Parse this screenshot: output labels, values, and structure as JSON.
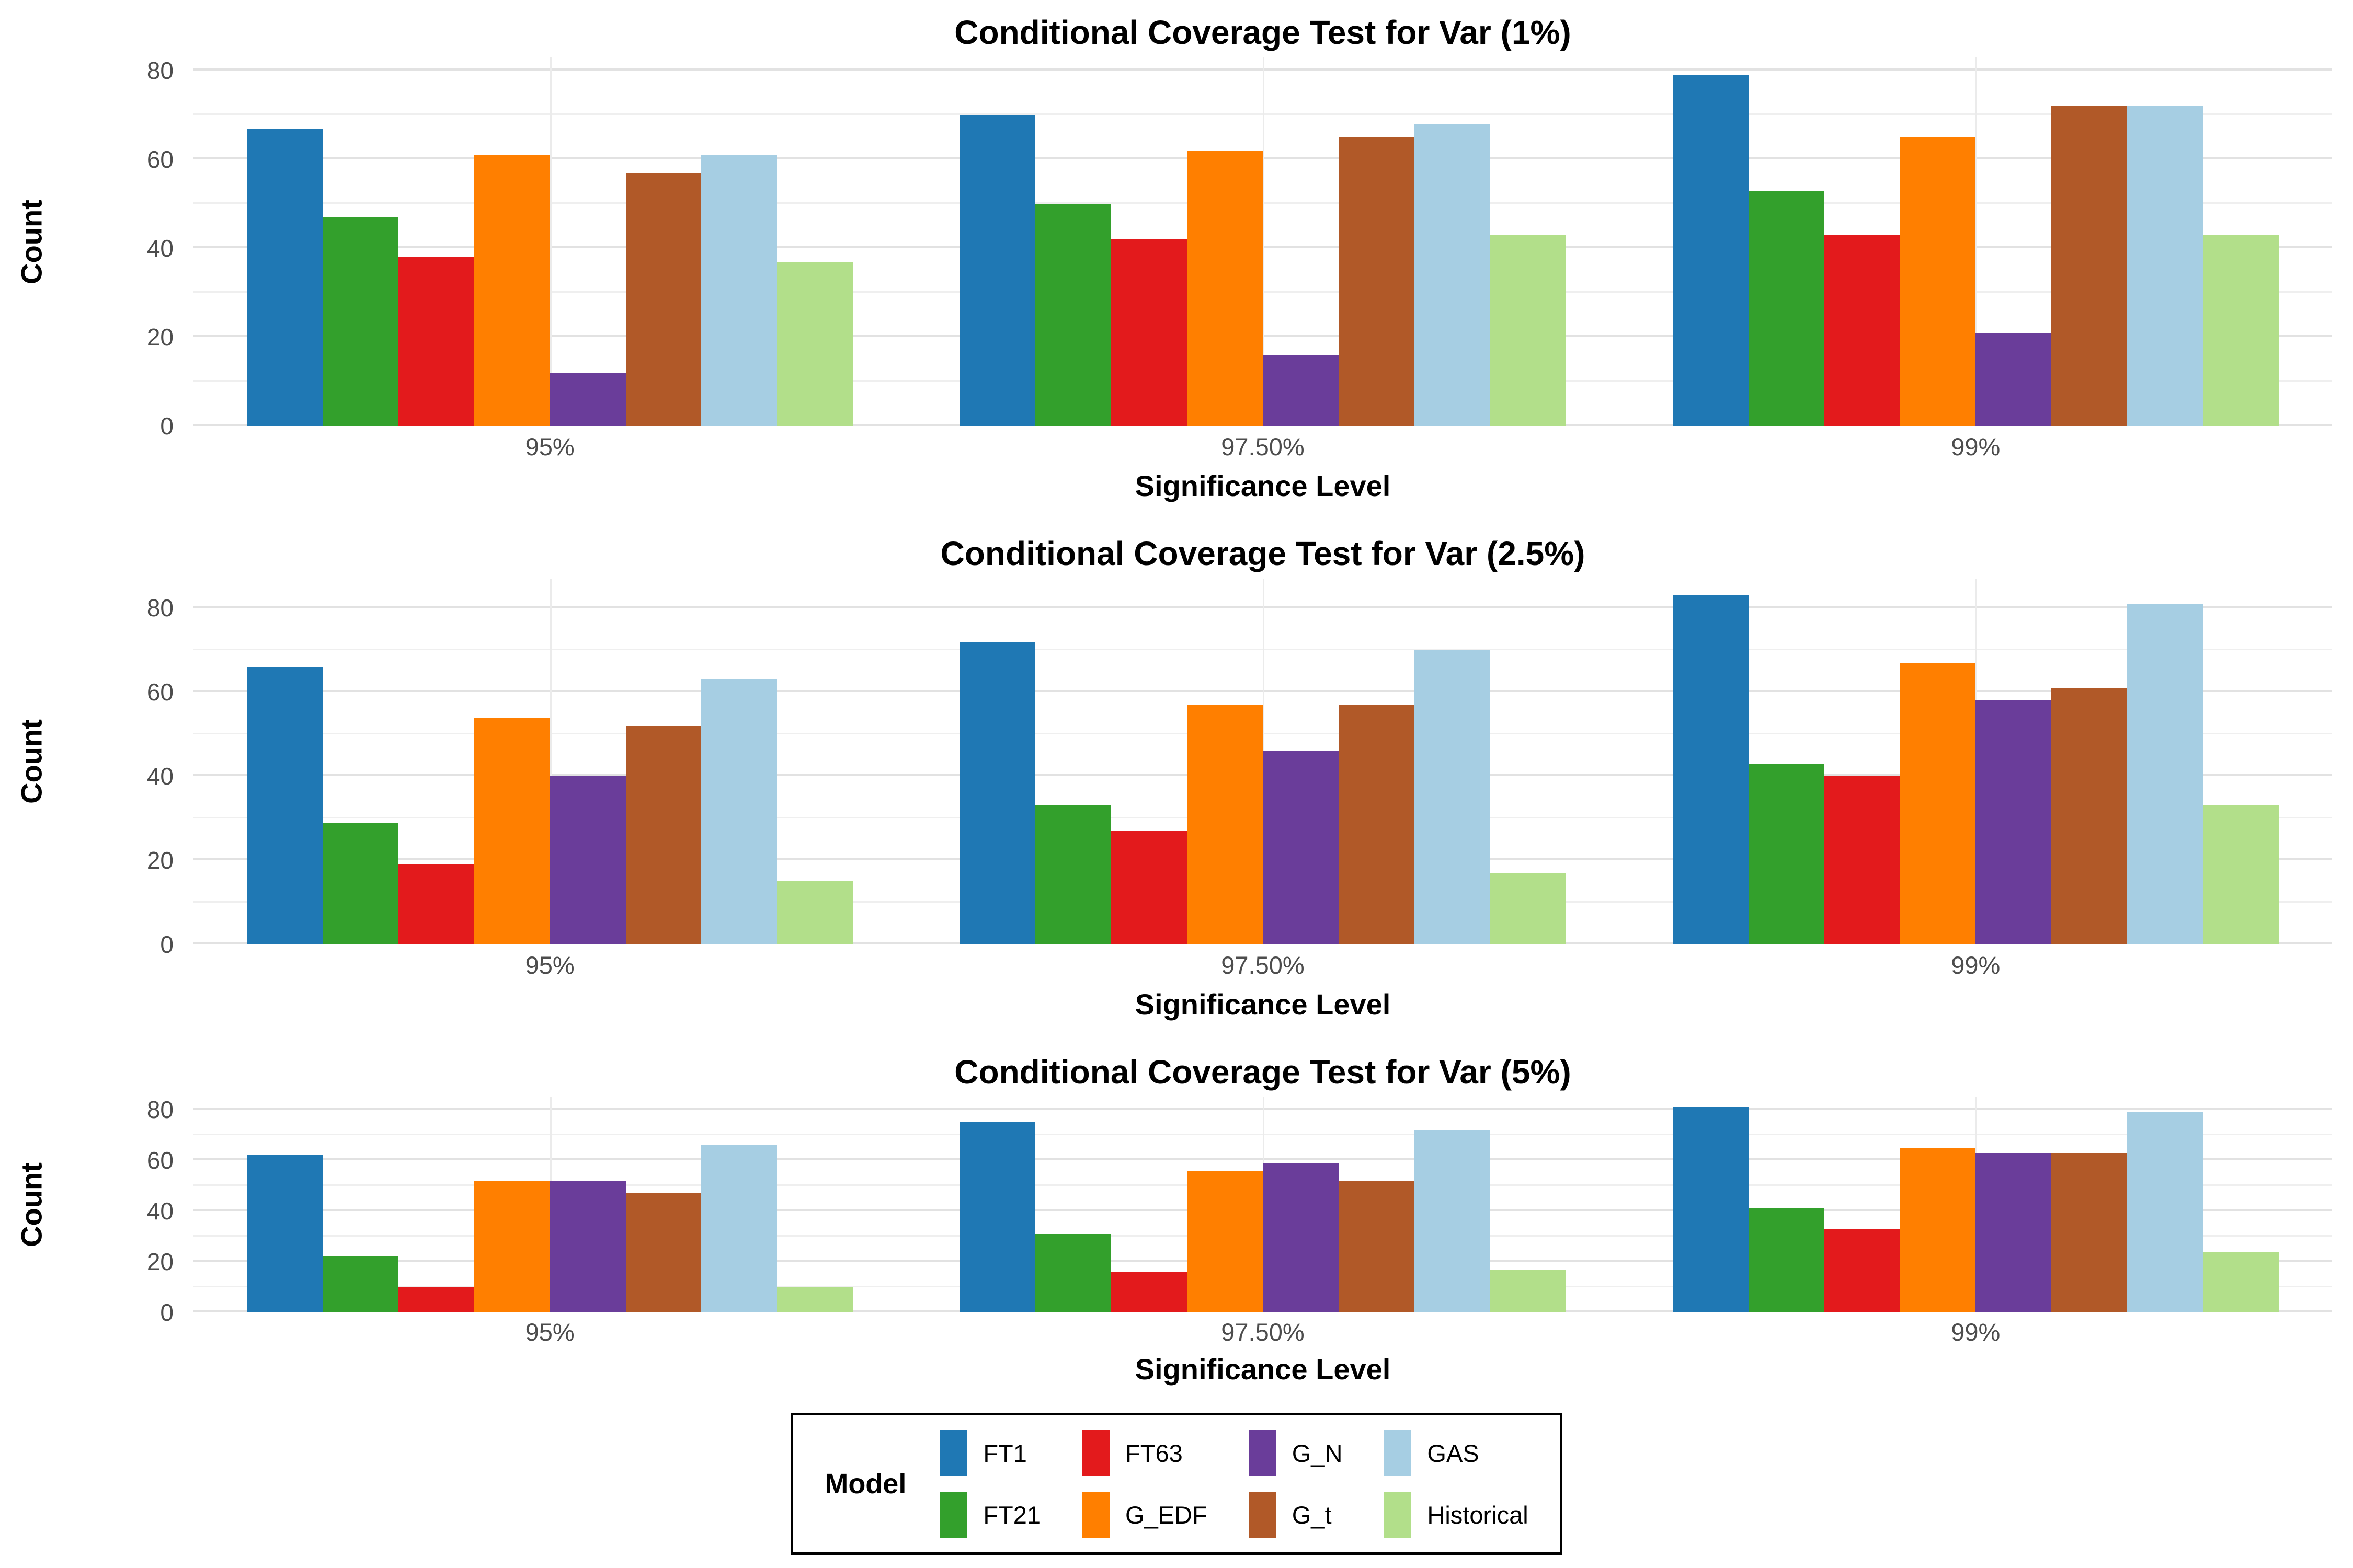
{
  "palette": {
    "FT1": "#1f78b4",
    "FT21": "#33a02c",
    "FT63": "#e31a1c",
    "G_EDF": "#ff7f00",
    "G_N": "#6a3d9a",
    "G_t": "#b15928",
    "GAS": "#a6cee3",
    "Historical": "#b2df8a"
  },
  "text_colors": {
    "tick": "#4d4d4d",
    "title": "#000000"
  },
  "legend": {
    "title": "Model",
    "items_row_major": [
      "FT1",
      "FT63",
      "G_N",
      "GAS",
      "FT21",
      "G_EDF",
      "G_t",
      "Historical"
    ]
  },
  "chart_data": [
    {
      "type": "bar",
      "title": "Conditional Coverage Test for Var (1%)",
      "xlabel": "Significance Level",
      "ylabel": "Count",
      "categories": [
        "95%",
        "97.50%",
        "99%"
      ],
      "yticks": [
        0,
        20,
        40,
        60,
        80
      ],
      "gridlines_every": 10,
      "grid": "on",
      "legend_position": "bottom-shared",
      "ylim": [
        0,
        83
      ],
      "series": [
        {
          "name": "FT1",
          "values": [
            67,
            70,
            79
          ]
        },
        {
          "name": "FT21",
          "values": [
            47,
            50,
            53
          ]
        },
        {
          "name": "FT63",
          "values": [
            38,
            42,
            43
          ]
        },
        {
          "name": "G_EDF",
          "values": [
            61,
            62,
            65
          ]
        },
        {
          "name": "G_N",
          "values": [
            12,
            16,
            21
          ]
        },
        {
          "name": "G_t",
          "values": [
            57,
            65,
            72
          ]
        },
        {
          "name": "GAS",
          "values": [
            61,
            68,
            72
          ]
        },
        {
          "name": "Historical",
          "values": [
            37,
            43,
            43
          ]
        }
      ]
    },
    {
      "type": "bar",
      "title": "Conditional Coverage Test for Var (2.5%)",
      "xlabel": "Significance Level",
      "ylabel": "Count",
      "categories": [
        "95%",
        "97.50%",
        "99%"
      ],
      "yticks": [
        0,
        20,
        40,
        60,
        80
      ],
      "gridlines_every": 10,
      "grid": "on",
      "legend_position": "bottom-shared",
      "ylim": [
        0,
        87
      ],
      "series": [
        {
          "name": "FT1",
          "values": [
            66,
            72,
            83
          ]
        },
        {
          "name": "FT21",
          "values": [
            29,
            33,
            43
          ]
        },
        {
          "name": "FT63",
          "values": [
            19,
            27,
            40
          ]
        },
        {
          "name": "G_EDF",
          "values": [
            54,
            57,
            67
          ]
        },
        {
          "name": "G_N",
          "values": [
            40,
            46,
            58
          ]
        },
        {
          "name": "G_t",
          "values": [
            52,
            57,
            61
          ]
        },
        {
          "name": "GAS",
          "values": [
            63,
            70,
            81
          ]
        },
        {
          "name": "Historical",
          "values": [
            15,
            17,
            33
          ]
        }
      ]
    },
    {
      "type": "bar",
      "title": "Conditional Coverage Test for Var (5%)",
      "xlabel": "Significance Level",
      "ylabel": "Count",
      "categories": [
        "95%",
        "97.50%",
        "99%"
      ],
      "yticks": [
        0,
        20,
        40,
        60,
        80
      ],
      "gridlines_every": 10,
      "grid": "on",
      "legend_position": "bottom-shared",
      "ylim": [
        0,
        85
      ],
      "series": [
        {
          "name": "FT1",
          "values": [
            62,
            75,
            81
          ]
        },
        {
          "name": "FT21",
          "values": [
            22,
            31,
            41
          ]
        },
        {
          "name": "FT63",
          "values": [
            10,
            16,
            33
          ]
        },
        {
          "name": "G_EDF",
          "values": [
            52,
            56,
            65
          ]
        },
        {
          "name": "G_N",
          "values": [
            52,
            59,
            63
          ]
        },
        {
          "name": "G_t",
          "values": [
            47,
            52,
            63
          ]
        },
        {
          "name": "GAS",
          "values": [
            66,
            72,
            79
          ]
        },
        {
          "name": "Historical",
          "values": [
            10,
            17,
            24
          ]
        }
      ]
    }
  ]
}
